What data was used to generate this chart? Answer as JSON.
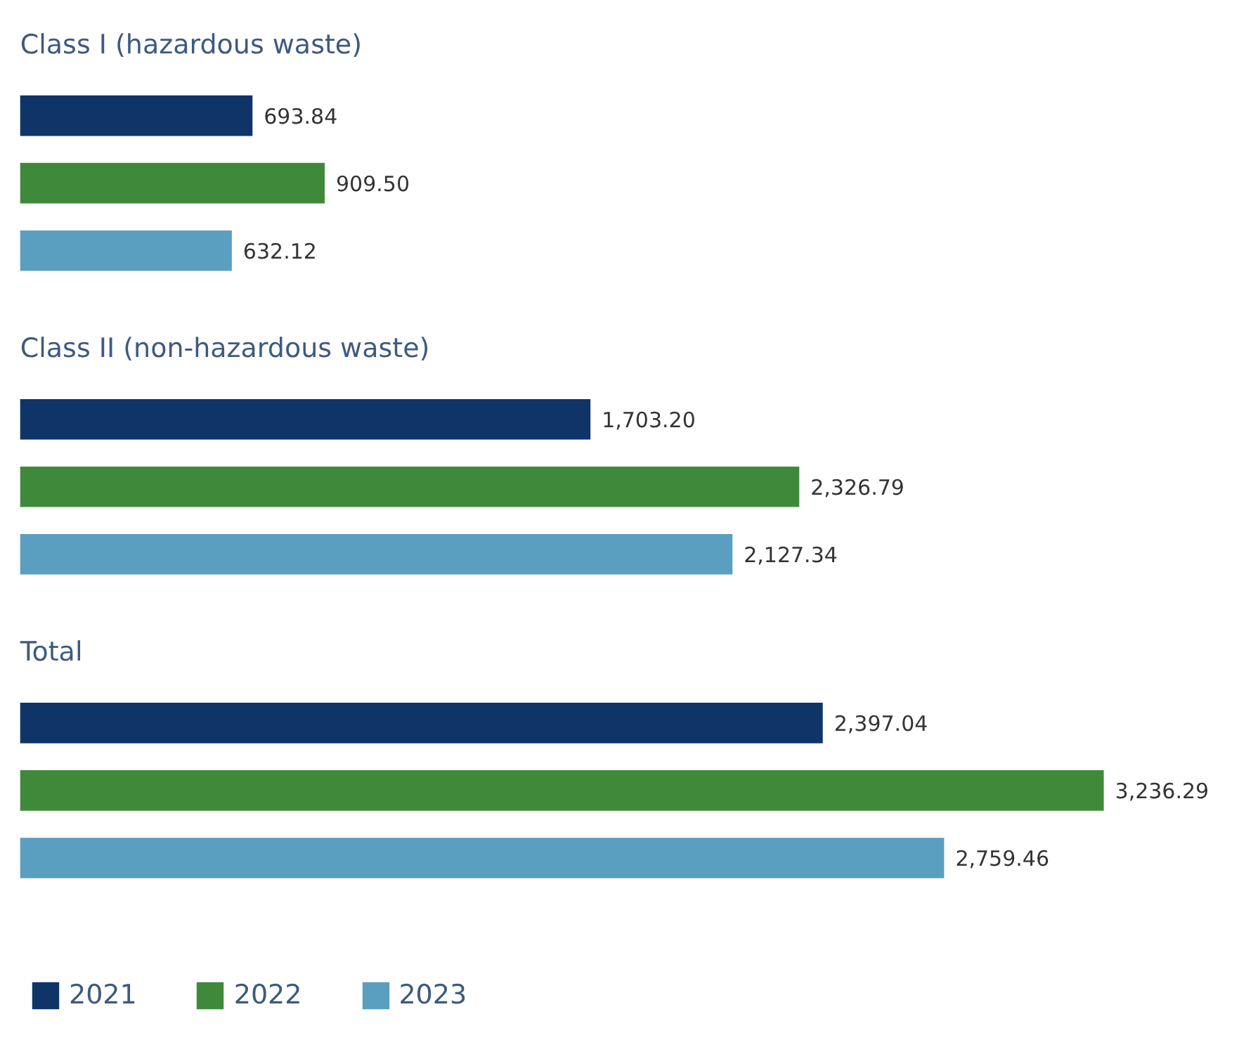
{
  "chart_data": {
    "type": "bar",
    "orientation": "horizontal",
    "categories": [
      "Class I (hazardous waste)",
      "Class II (non-hazardous waste)",
      "Total"
    ],
    "series": [
      {
        "name": "2021",
        "color": "#0f3468",
        "values": [
          693.84,
          1703.2,
          2397.04
        ],
        "value_labels": [
          "693.84",
          "1,703.20",
          "2,397.04"
        ]
      },
      {
        "name": "2022",
        "color": "#3f8a3a",
        "values": [
          909.5,
          2326.79,
          3236.29
        ],
        "value_labels": [
          "909.50",
          "2,326.79",
          "3,236.29"
        ]
      },
      {
        "name": "2023",
        "color": "#5a9fbf",
        "values": [
          632.12,
          2127.34,
          2759.46
        ],
        "value_labels": [
          "632.12",
          "2,127.34",
          "2,759.46"
        ]
      }
    ],
    "legend": "bottom"
  }
}
